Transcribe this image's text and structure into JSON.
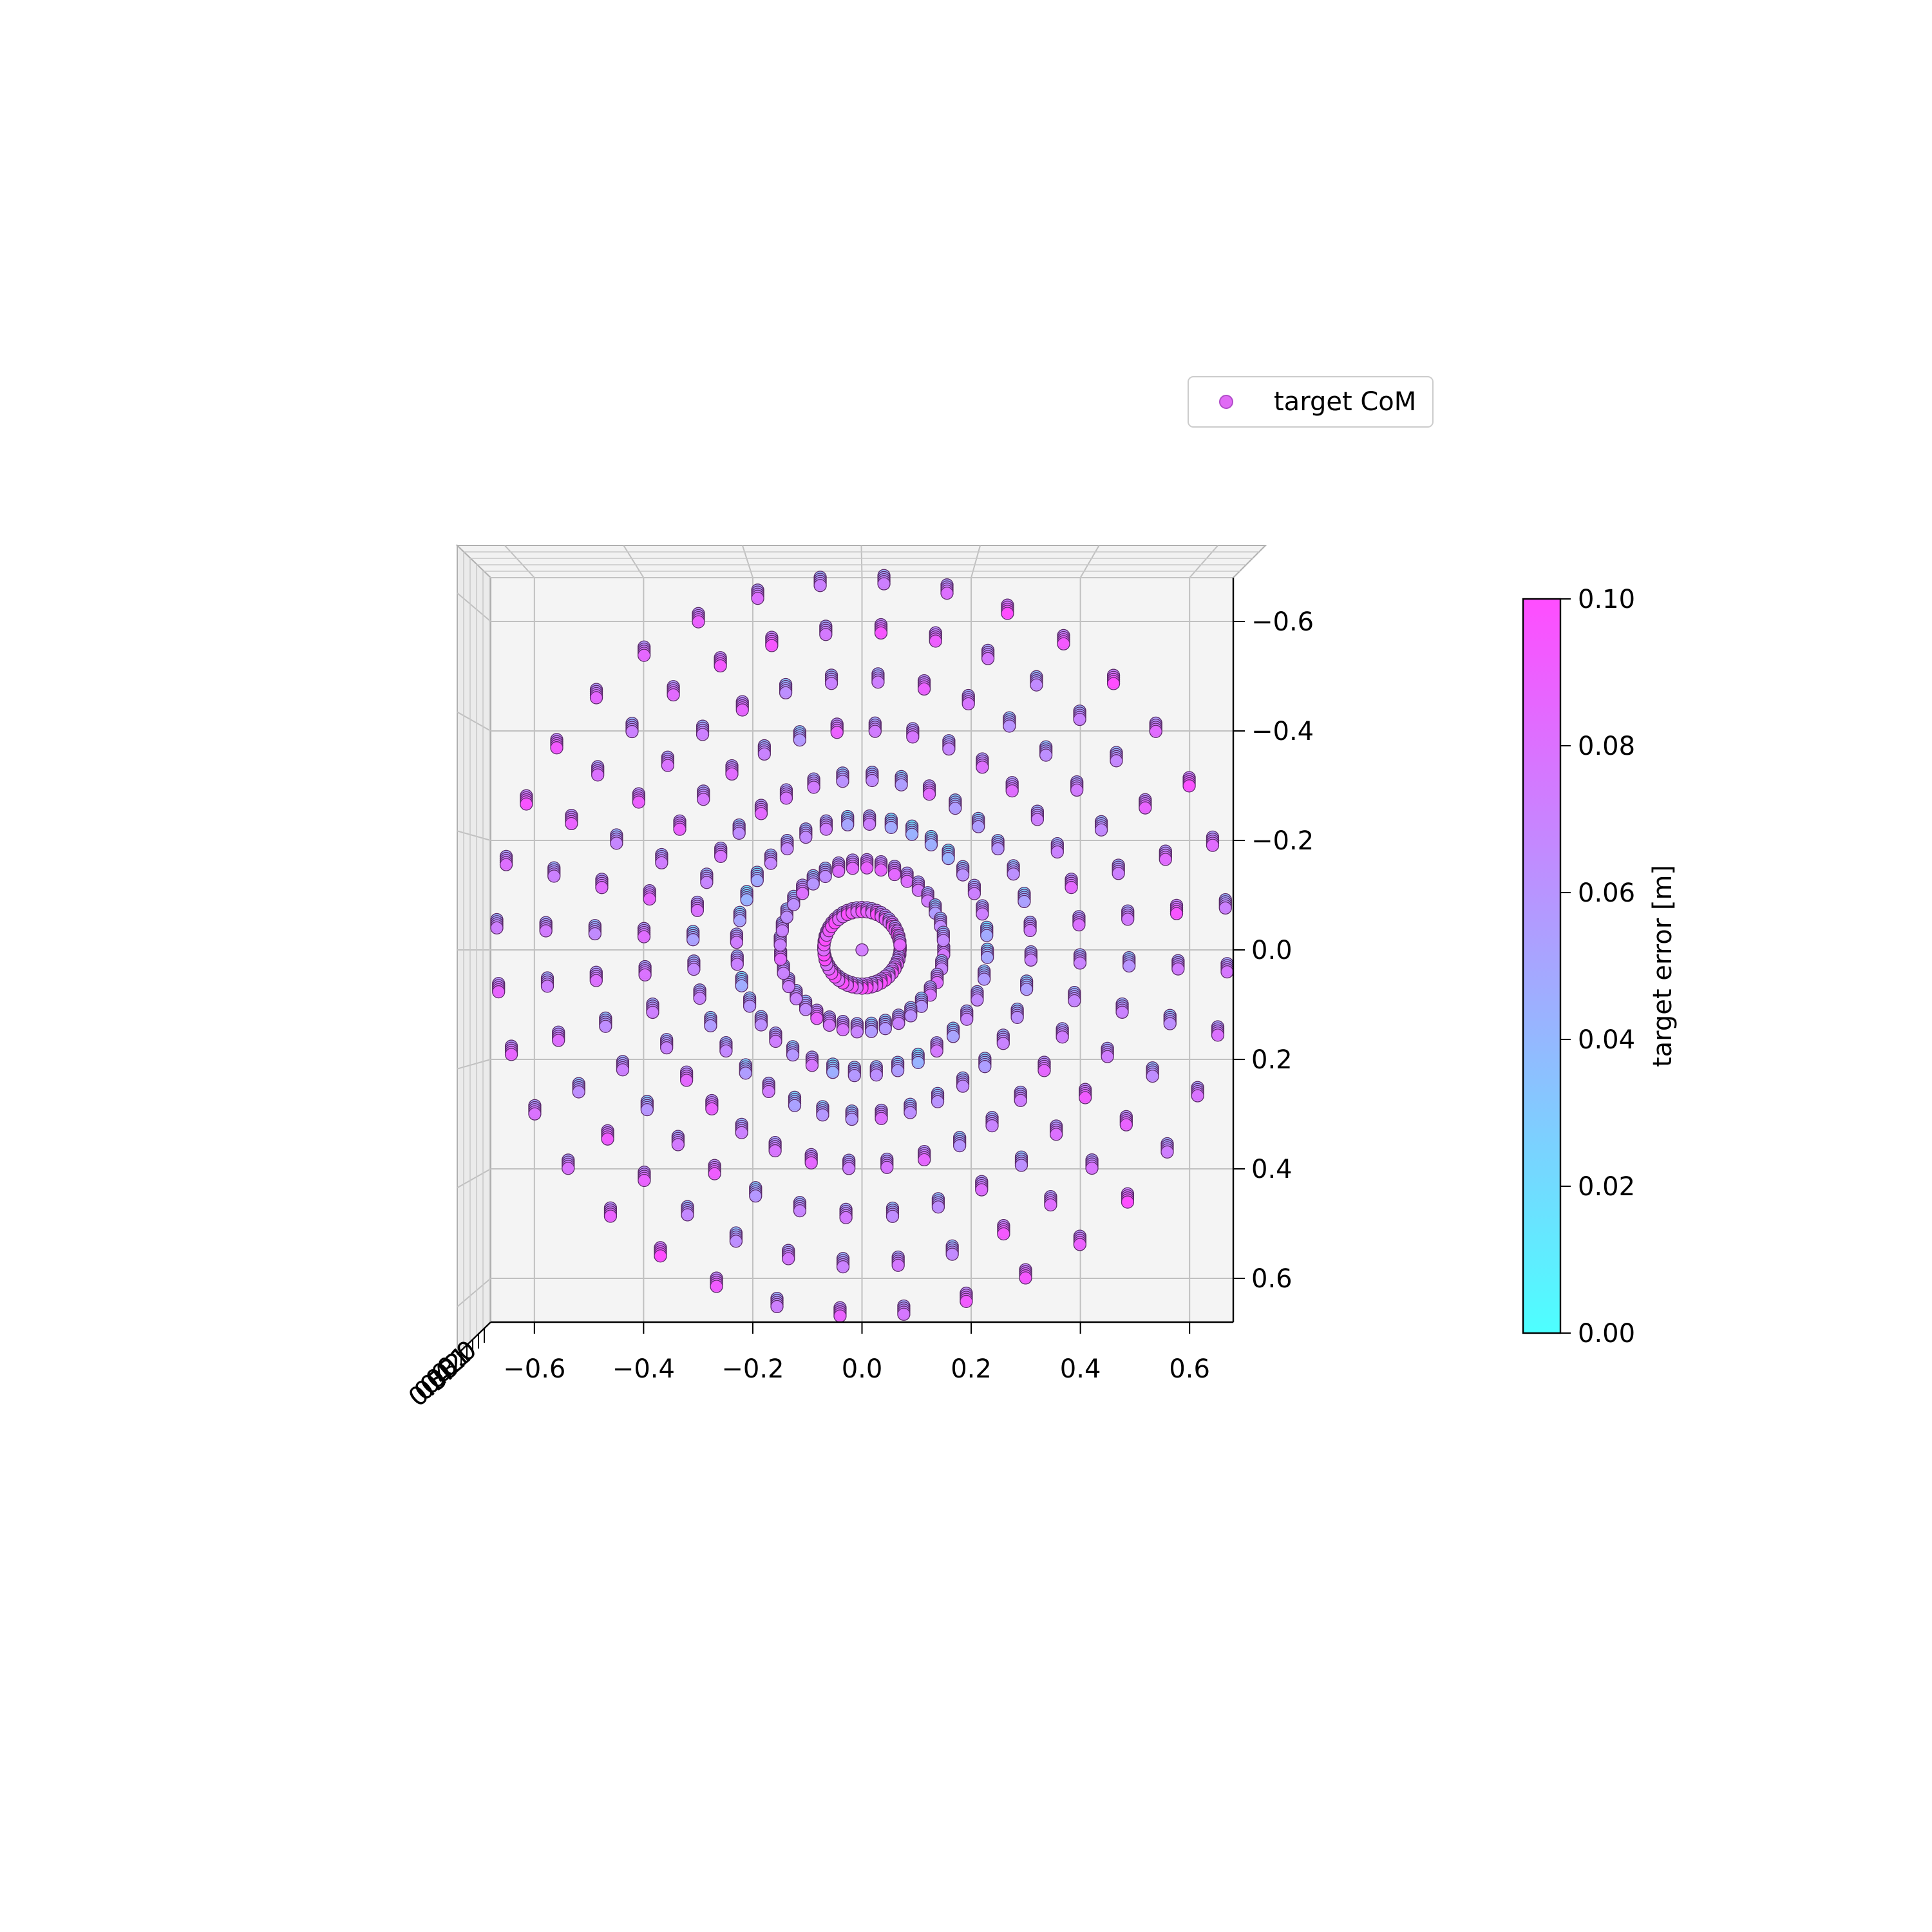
{
  "chart_data": {
    "type": "scatter",
    "projection": "3d, viewed top-down",
    "xlabel": "",
    "ylabel": "",
    "x_ticks": [
      "−0.6",
      "−0.4",
      "−0.2",
      "0.0",
      "0.2",
      "0.4",
      "0.6"
    ],
    "y_ticks": [
      "−0.6",
      "−0.4",
      "−0.2",
      "0.0",
      "0.2",
      "0.4",
      "0.6"
    ],
    "z_ticks_overlapping": [
      "0.0",
      "0.1",
      "0.2",
      "0.3",
      "0.4",
      "0.5"
    ],
    "x_range": [
      -0.68,
      0.68
    ],
    "y_range": [
      -0.68,
      0.68
    ],
    "y_inverted": true,
    "grid": true,
    "legend": {
      "placement": "top-right",
      "entries": [
        "target CoM"
      ]
    },
    "colorbar": {
      "label": "target error [m]",
      "range": [
        0.0,
        0.1
      ],
      "ticks": [
        "0.00",
        "0.02",
        "0.04",
        "0.06",
        "0.08",
        "0.10"
      ],
      "colormap": "cool",
      "color_low": "#4dffff",
      "color_high": "#ff4dff"
    },
    "series": [
      {
        "name": "target CoM",
        "description": "concentric rings of target centre-of-mass points, color = target error",
        "center": [
          0.0,
          0.0,
          0.07
        ],
        "rings": [
          {
            "radius": 0.07,
            "points": 48,
            "error": 0.095
          },
          {
            "radius": 0.15,
            "points": 36,
            "error": 0.072
          },
          {
            "radius": 0.23,
            "points": 36,
            "error": 0.06
          },
          {
            "radius": 0.31,
            "points": 36,
            "error": 0.07
          },
          {
            "radius": 0.4,
            "points": 36,
            "error": 0.072
          },
          {
            "radius": 0.49,
            "points": 36,
            "error": 0.075
          },
          {
            "radius": 0.58,
            "points": 36,
            "error": 0.08
          },
          {
            "radius": 0.67,
            "points": 36,
            "error": 0.085
          }
        ]
      }
    ]
  }
}
